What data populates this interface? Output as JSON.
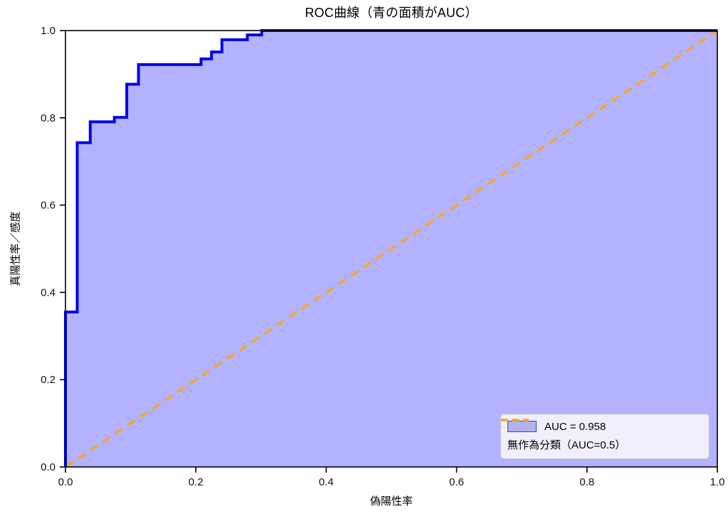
{
  "chart_data": {
    "type": "line",
    "subtype": "roc-step-area",
    "title": "ROC曲線（青の面積がAUC）",
    "xlabel": "偽陽性率",
    "ylabel": "真陽性率／感度",
    "xlim": [
      0.0,
      1.0
    ],
    "ylim": [
      0.0,
      1.0
    ],
    "xticks": [
      0.0,
      0.2,
      0.4,
      0.6,
      0.8,
      1.0
    ],
    "yticks": [
      0.0,
      0.2,
      0.4,
      0.6,
      0.8,
      1.0
    ],
    "xtick_labels": [
      "0.0",
      "0.2",
      "0.4",
      "0.6",
      "0.8",
      "1.0"
    ],
    "ytick_labels": [
      "0.0",
      "0.2",
      "0.4",
      "0.6",
      "0.8",
      "1.0"
    ],
    "grid": false,
    "legend_position": "lower right",
    "auc": 0.958,
    "series": [
      {
        "name": "AUC = 0.958",
        "style": "step-line-with-area-fill",
        "line_color": "#0404e8",
        "fill_color": "rgba(0,0,255,0.30)",
        "fpr": [
          0,
          0,
          0.018,
          0.018,
          0.038,
          0.038,
          0.075,
          0.075,
          0.094,
          0.094,
          0.112,
          0.112,
          0.208,
          0.208,
          0.224,
          0.224,
          0.24,
          0.24,
          0.279,
          0.279,
          0.301,
          0.301,
          1.0
        ],
        "tpr": [
          0,
          0.355,
          0.355,
          0.743,
          0.743,
          0.791,
          0.791,
          0.801,
          0.801,
          0.877,
          0.877,
          0.922,
          0.922,
          0.935,
          0.935,
          0.951,
          0.951,
          0.979,
          0.979,
          0.99,
          0.99,
          1.0,
          1.0
        ]
      },
      {
        "name": "無作為分類（AUC=0.5）",
        "style": "dashed-line",
        "line_color": "#ffa513",
        "x": [
          0.0,
          1.0
        ],
        "y": [
          0.0,
          1.0
        ]
      }
    ],
    "colors": {
      "roc_line": "#0404e8",
      "area_fill": "rgba(0,0,255,0.30)",
      "random_line": "#ffa513",
      "spine": "#000000",
      "tick_text": "#111111"
    }
  },
  "legend": {
    "items": [
      {
        "label": "AUC = 0.958",
        "swatch": "blue-area-patch"
      },
      {
        "label": "無作為分類（AUC=0.5）",
        "swatch": "orange-dashed-line"
      }
    ]
  }
}
